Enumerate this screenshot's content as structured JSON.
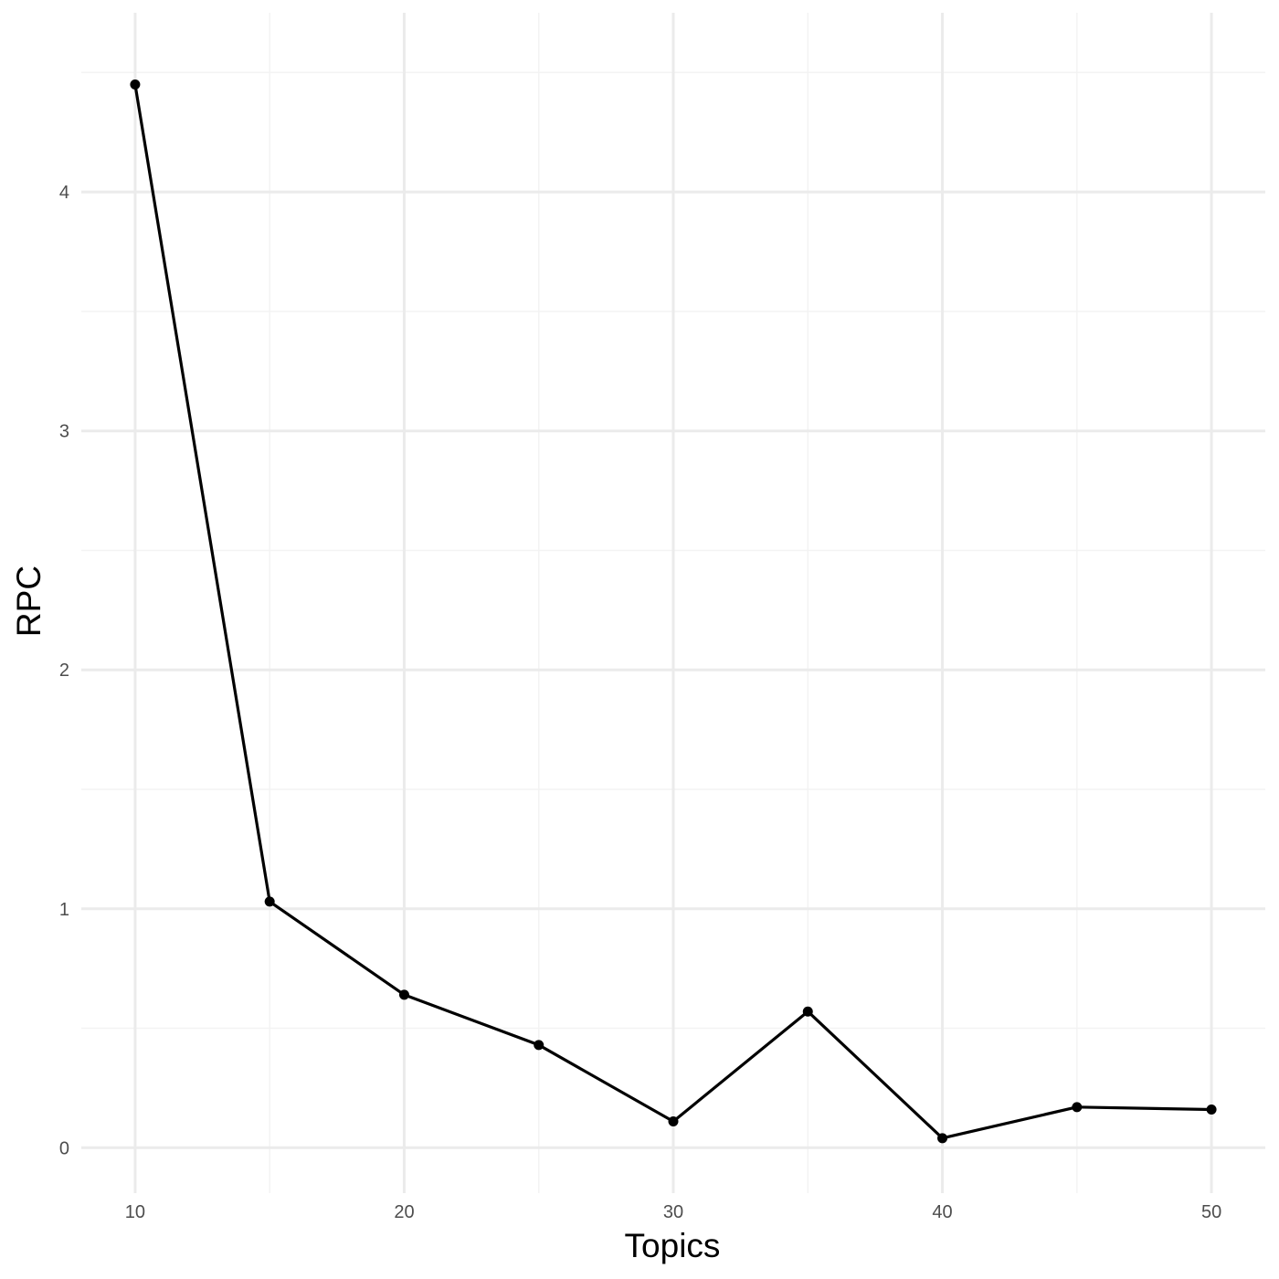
{
  "chart_data": {
    "type": "line",
    "title": "",
    "xlabel": "Topics",
    "ylabel": "RPC",
    "x": [
      10,
      15,
      20,
      25,
      30,
      35,
      40,
      45,
      50
    ],
    "series": [
      {
        "values": [
          4.45,
          1.03,
          0.64,
          0.43,
          0.11,
          0.57,
          0.04,
          0.17,
          0.16
        ]
      }
    ],
    "xlim": [
      8,
      52
    ],
    "ylim": [
      -0.19,
      4.75
    ],
    "x_ticks": [
      10,
      20,
      30,
      40,
      50
    ],
    "x_minor_ticks": [
      15,
      25,
      35,
      45
    ],
    "y_ticks": [
      0,
      1,
      2,
      3,
      4
    ],
    "y_minor_ticks": [
      0.5,
      1.5,
      2.5,
      3.5,
      4.5
    ],
    "grid": true,
    "legend": "none",
    "colors": {
      "line": "#000000",
      "point": "#000000",
      "grid_major": "#ebebeb",
      "grid_minor": "#f3f3f3",
      "tick_label": "#4d4d4d"
    }
  }
}
